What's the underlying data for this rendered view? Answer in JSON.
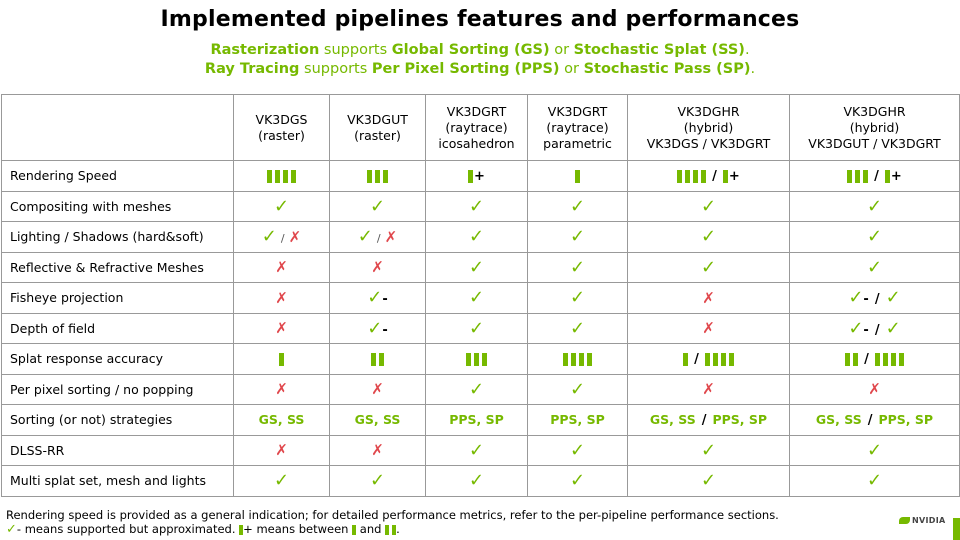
{
  "title": "Implemented pipelines features and performances",
  "subtitle": {
    "line1": [
      {
        "text": "Rasterization",
        "bold": true
      },
      {
        "text": " supports ",
        "bold": false
      },
      {
        "text": "Global Sorting (GS)",
        "bold": true
      },
      {
        "text": " or ",
        "bold": false
      },
      {
        "text": "Stochastic Splat (SS)",
        "bold": true
      },
      {
        "text": ".",
        "bold": false
      }
    ],
    "line2": [
      {
        "text": "Ray Tracing",
        "bold": true
      },
      {
        "text": " supports ",
        "bold": false
      },
      {
        "text": "Per Pixel Sorting (PPS)",
        "bold": true
      },
      {
        "text": " or ",
        "bold": false
      },
      {
        "text": "Stochastic Pass (SP)",
        "bold": true
      },
      {
        "text": ".",
        "bold": false
      }
    ]
  },
  "columns": [
    [
      "VK3DGS",
      "(raster)"
    ],
    [
      "VK3DGUT",
      "(raster)"
    ],
    [
      "VK3DGRT",
      "(raytrace)",
      "icosahedron"
    ],
    [
      "VK3DGRT",
      "(raytrace)",
      "parametric"
    ],
    [
      "VK3DGHR",
      "(hybrid)",
      "VK3DGS / VK3DGRT"
    ],
    [
      "VK3DGHR",
      "(hybrid)",
      "VK3DGUT / VK3DGRT"
    ]
  ],
  "rows": [
    {
      "label": "Rendering Speed",
      "cells": [
        "b4",
        "b3",
        "b1+",
        "b1",
        "b4|b1+",
        "b3|b1+"
      ]
    },
    {
      "label": "Compositing with meshes",
      "cells": [
        "y",
        "y",
        "y",
        "y",
        "y",
        "y"
      ]
    },
    {
      "label": "Lighting / Shadows (hard&soft)",
      "cells": [
        "y/n",
        "y/n",
        "y",
        "y",
        "y",
        "y"
      ]
    },
    {
      "label": "Reflective & Refractive Meshes",
      "cells": [
        "n",
        "n",
        "y",
        "y",
        "y",
        "y"
      ]
    },
    {
      "label": "Fisheye projection",
      "cells": [
        "n",
        "y-",
        "y",
        "y",
        "n",
        "y-|y"
      ]
    },
    {
      "label": "Depth of field",
      "cells": [
        "n",
        "y-",
        "y",
        "y",
        "n",
        "y-|y"
      ]
    },
    {
      "label": "Splat response accuracy",
      "cells": [
        "b1",
        "b2",
        "b3",
        "b4",
        "b1|b4",
        "b2|b4"
      ]
    },
    {
      "label": "Per pixel sorting / no popping",
      "cells": [
        "n",
        "n",
        "y",
        "y",
        "n",
        "n"
      ]
    },
    {
      "label": "Sorting (or not) strategies",
      "cells": [
        "t:GS, SS",
        "t:GS, SS",
        "t:PPS, SP",
        "t:PPS, SP",
        "t:GS, SS|t:PPS, SP",
        "t:GS, SS|t:PPS, SP"
      ]
    },
    {
      "label": "DLSS-RR",
      "cells": [
        "n",
        "n",
        "y",
        "y",
        "y",
        "y"
      ]
    },
    {
      "label": "Multi splat set, mesh and lights",
      "cells": [
        "y",
        "y",
        "y",
        "y",
        "y",
        "y"
      ]
    }
  ],
  "footer": {
    "line1": "Rendering speed is provided as a general indication; for detailed performance metrics, refer to the per-pipeline performance sections.",
    "line2_a": "- means supported but approximated.",
    "line2_b": "+ means between",
    "line2_c": "and",
    "line2_d": "."
  },
  "logo": "NVIDIA",
  "colors": {
    "green": "#76b900",
    "red": "#e0474c"
  }
}
